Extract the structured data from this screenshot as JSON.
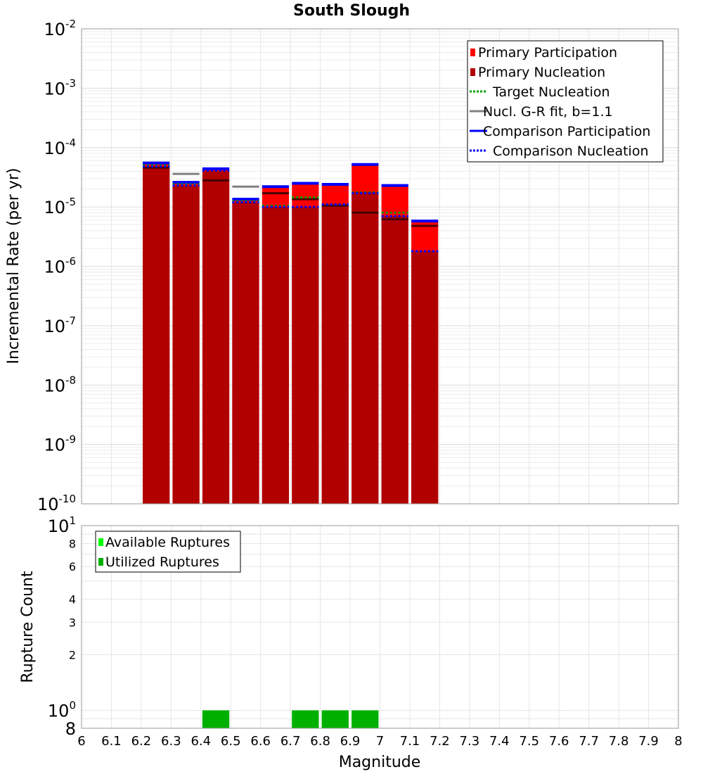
{
  "chart_data": [
    {
      "type": "bar",
      "title": "South Slough",
      "xlabel": "",
      "ylabel": "Incremental Rate (per yr)",
      "xlim": [
        6,
        8
      ],
      "ylim": [
        1e-10,
        0.01
      ],
      "yscale": "log",
      "grid": true,
      "legend_position": "top-right",
      "y_tick_labels": [
        {
          "value": 0.01,
          "base": "10",
          "exp": "-2"
        },
        {
          "value": 0.001,
          "base": "10",
          "exp": "-3"
        },
        {
          "value": 0.0001,
          "base": "10",
          "exp": "-4"
        },
        {
          "value": 1e-05,
          "base": "10",
          "exp": "-5"
        },
        {
          "value": 1e-06,
          "base": "10",
          "exp": "-6"
        },
        {
          "value": 1e-07,
          "base": "10",
          "exp": "-7"
        },
        {
          "value": 1e-08,
          "base": "10",
          "exp": "-8"
        },
        {
          "value": 1e-09,
          "base": "10",
          "exp": "-9"
        },
        {
          "value": 1e-10,
          "base": "10",
          "exp": "-10"
        }
      ],
      "x": [
        6.25,
        6.35,
        6.45,
        6.55,
        6.65,
        6.75,
        6.85,
        6.95,
        7.05,
        7.15
      ],
      "series": [
        {
          "name": "Primary Participation",
          "kind": "bar",
          "color": "#ff0000",
          "values": [
            5.5e-05,
            2.6e-05,
            4.4e-05,
            1.35e-05,
            2.2e-05,
            2.5e-05,
            2.4e-05,
            5.2e-05,
            2.3e-05,
            5.8e-06
          ]
        },
        {
          "name": "Primary Nucleation",
          "kind": "bar",
          "color": "#b00000",
          "values": [
            4.8e-05,
            2.3e-05,
            4e-05,
            1.2e-05,
            1e-05,
            1e-05,
            1.1e-05,
            1.8e-05,
            7e-06,
            1.8e-06
          ]
        },
        {
          "name": "Target Nucleation",
          "kind": "dotted",
          "color": "#00a000",
          "values": [
            5e-05,
            2.4e-05,
            4.1e-05,
            1.25e-05,
            1.05e-05,
            1.45e-05,
            1.1e-05,
            1.75e-05,
            8e-06,
            1.8e-06
          ]
        },
        {
          "name": "Nucl. G-R fit, b=1.1",
          "kind": "solid",
          "color": "#808080",
          "values": [
            4.6e-05,
            3.6e-05,
            2.8e-05,
            2.2e-05,
            1.7e-05,
            1.35e-05,
            1.05e-05,
            8e-06,
            6.2e-06,
            4.8e-06
          ]
        },
        {
          "name": "Comparison Participation",
          "kind": "solid-thick",
          "color": "#0000ff",
          "values": [
            5.5e-05,
            2.6e-05,
            4.4e-05,
            1.35e-05,
            2.2e-05,
            2.5e-05,
            2.4e-05,
            5.2e-05,
            2.3e-05,
            5.8e-06
          ]
        },
        {
          "name": "Comparison Nucleation",
          "kind": "dotted",
          "color": "#0000ff",
          "values": [
            4.8e-05,
            2.3e-05,
            4.1e-05,
            1.2e-05,
            1e-05,
            1e-05,
            1.1e-05,
            1.7e-05,
            7e-06,
            1.8e-06
          ]
        }
      ],
      "legend": [
        {
          "label": "Primary Participation",
          "symbol": "bar",
          "color": "#ff0000"
        },
        {
          "label": "Primary Nucleation",
          "symbol": "bar",
          "color": "#b00000"
        },
        {
          "label": "Target Nucleation",
          "symbol": "dotted",
          "color": "#00a000"
        },
        {
          "label": "Nucl. G-R fit, b=1.1",
          "symbol": "solid",
          "color": "#808080"
        },
        {
          "label": "Comparison Participation",
          "symbol": "solid",
          "color": "#0000ff"
        },
        {
          "label": "Comparison Nucleation",
          "symbol": "dotted",
          "color": "#0000ff"
        }
      ]
    },
    {
      "type": "bar",
      "title": "",
      "xlabel": "Magnitude",
      "ylabel": "Rupture Count",
      "xlim": [
        6,
        8
      ],
      "ylim": [
        0.8,
        10
      ],
      "yscale": "log",
      "grid": true,
      "legend_position": "top-left",
      "x_ticks": [
        "6",
        "6.1",
        "6.2",
        "6.3",
        "6.4",
        "6.5",
        "6.6",
        "6.7",
        "6.8",
        "6.9",
        "7",
        "7.1",
        "7.2",
        "7.3",
        "7.4",
        "7.5",
        "7.6",
        "7.7",
        "7.8",
        "7.9",
        "8"
      ],
      "y_tick_labels": [
        {
          "value": 10,
          "base": "10",
          "exp": "1",
          "size": "big"
        },
        {
          "value": 8,
          "base": "8",
          "exp": "",
          "size": "small"
        },
        {
          "value": 6,
          "base": "6",
          "exp": "",
          "size": "small"
        },
        {
          "value": 4,
          "base": "4",
          "exp": "",
          "size": "small"
        },
        {
          "value": 3,
          "base": "3",
          "exp": "",
          "size": "small"
        },
        {
          "value": 2,
          "base": "2",
          "exp": "",
          "size": "small"
        },
        {
          "value": 1,
          "base": "10",
          "exp": "0",
          "size": "big"
        },
        {
          "value": 0.8,
          "base": "8",
          "exp": "",
          "size": "big"
        }
      ],
      "x": [
        6.45,
        6.75,
        6.85,
        6.95
      ],
      "series": [
        {
          "name": "Available Ruptures",
          "kind": "bar",
          "color": "#00ff00",
          "values": [
            1,
            1,
            1,
            1
          ]
        },
        {
          "name": "Utilized Ruptures",
          "kind": "bar",
          "color": "#00b000",
          "values": [
            1,
            1,
            1,
            1
          ]
        }
      ],
      "legend": [
        {
          "label": "Available Ruptures",
          "symbol": "bar",
          "color": "#00ff00"
        },
        {
          "label": "Utilized Ruptures",
          "symbol": "bar",
          "color": "#00b000"
        }
      ]
    }
  ]
}
